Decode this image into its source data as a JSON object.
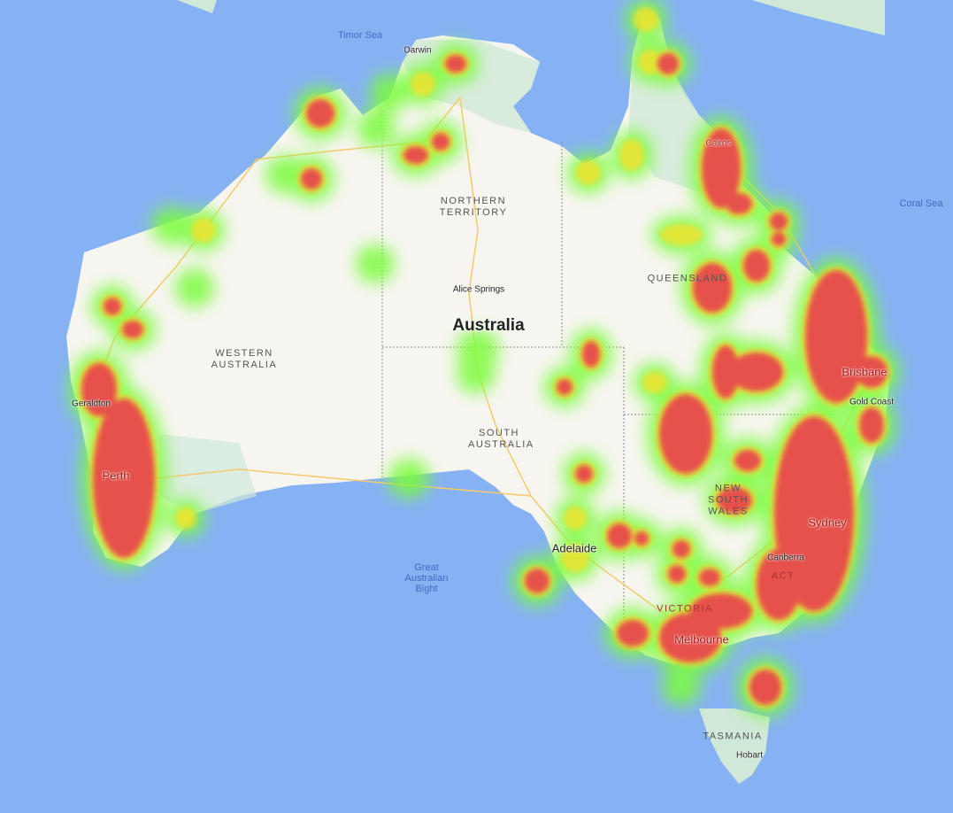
{
  "map": {
    "colors": {
      "water": "#86b1f3",
      "land": "#f7f5f0",
      "vegetation": "#cfe8d8",
      "heat_low": "#7cfc3c",
      "heat_mid": "#f5e12e",
      "heat_high": "#e8384f",
      "roads": "#f7c96b"
    },
    "seas": {
      "timor": "Timor Sea",
      "coral": "Coral Sea",
      "bight": "Great Australian Bight"
    },
    "country": "Australia",
    "states": {
      "nt": "NORTHERN TERRITORY",
      "wa": "WESTERN AUSTRALIA",
      "sa": "SOUTH AUSTRALIA",
      "qld": "QUEENSLAND",
      "nsw": "NEW SOUTH WALES",
      "vic": "VICTORIA",
      "act": "ACT",
      "tas": "TASMANIA"
    },
    "cities": {
      "darwin": "Darwin",
      "cairns": "Cairns",
      "alice": "Alice Springs",
      "brisbane": "Brisbane",
      "goldcoast": "Gold Coast",
      "sydney": "Sydney",
      "canberra": "Canberra",
      "melbourne": "Melbourne",
      "adelaide": "Adelaide",
      "perth": "Perth",
      "geraldton": "Geraldton",
      "hobart": "Hobart"
    }
  }
}
